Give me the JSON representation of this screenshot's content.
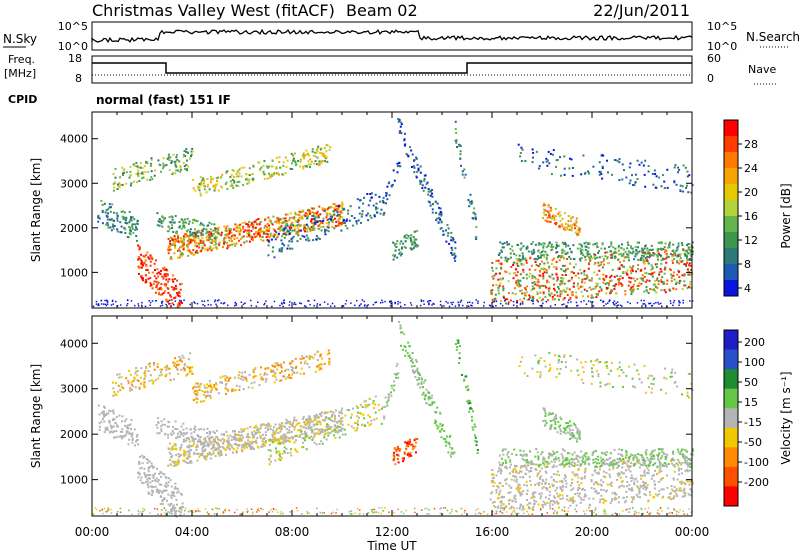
{
  "header": {
    "station": "Christmas Valley West (fitACF)",
    "beam": "Beam 02",
    "date": "22/Jun/2011"
  },
  "top_panel": {
    "left_label": "N.Sky",
    "left_ticks": [
      "10^5",
      "10^0"
    ],
    "right_label": "N.Search",
    "right_ticks": [
      "10^5",
      "10^0"
    ]
  },
  "freq_panel": {
    "left_label_1": "Freq.",
    "left_label_2": "[MHz]",
    "left_ticks": [
      "18",
      "8"
    ],
    "right_label": "Nave",
    "right_ticks": [
      "60",
      "0"
    ]
  },
  "cpid": {
    "label": "CPID",
    "value": "normal (fast) 151 IF"
  },
  "chart_data": [
    {
      "type": "heatmap",
      "title": "",
      "ylabel": "Slant Range [km]",
      "xlabel": "",
      "y_ticks": [
        "4000",
        "3000",
        "2000",
        "1000"
      ],
      "ylim": [
        200,
        4600
      ],
      "colorbar_label": "Power [dB]",
      "colorbar_ticks": [
        "28",
        "24",
        "20",
        "16",
        "12",
        "8",
        "4"
      ],
      "colors": [
        "#ff0000",
        "#ff3c00",
        "#ff7800",
        "#f5a500",
        "#e6c800",
        "#b4d23c",
        "#64b450",
        "#3c9650",
        "#2d7878",
        "#1e5ab4",
        "#0a14dc"
      ]
    },
    {
      "type": "heatmap",
      "title": "",
      "ylabel": "Slant Range [km]",
      "xlabel": "Time UT",
      "x_ticks": [
        "00:00",
        "04:00",
        "08:00",
        "12:00",
        "16:00",
        "20:00",
        "00:00"
      ],
      "y_ticks": [
        "4000",
        "3000",
        "2000",
        "1000"
      ],
      "ylim": [
        200,
        4600
      ],
      "colorbar_label": "Velocity [m s⁻¹]",
      "colorbar_ticks": [
        "200",
        "100",
        "50",
        "15",
        "-15",
        "-50",
        "-100",
        "-200"
      ],
      "colors": [
        "#1e1ec8",
        "#2850c8",
        "#1e8c32",
        "#64c846",
        "#b4b4b4",
        "#f0c800",
        "#ff8c00",
        "#ff5000",
        "#ff0000"
      ]
    }
  ]
}
